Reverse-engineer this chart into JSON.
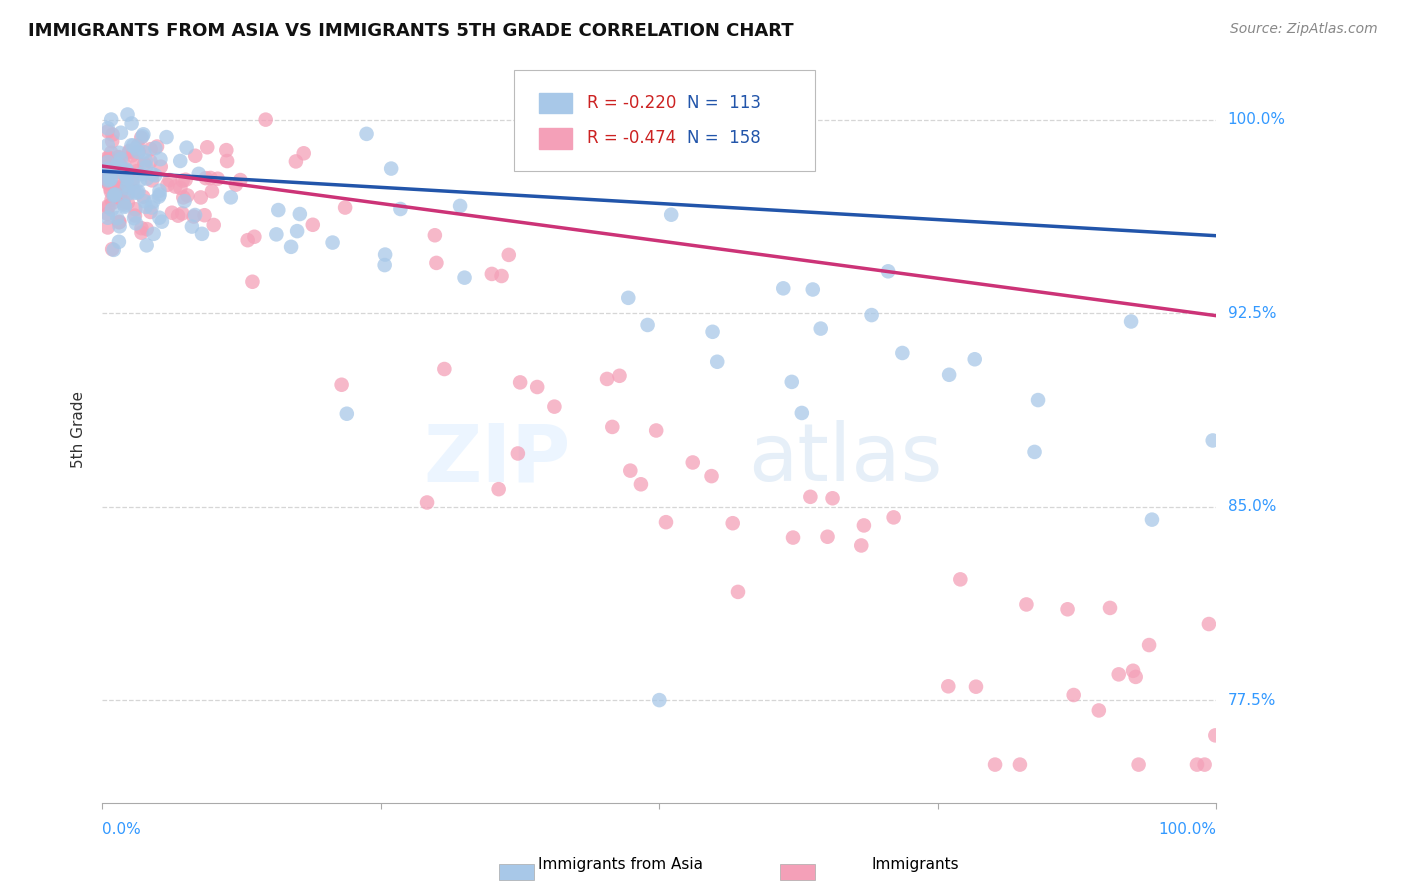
{
  "title": "IMMIGRANTS FROM ASIA VS IMMIGRANTS 5TH GRADE CORRELATION CHART",
  "source": "Source: ZipAtlas.com",
  "ylabel": "5th Grade",
  "ytick_labels": [
    "100.0%",
    "92.5%",
    "85.0%",
    "77.5%"
  ],
  "ytick_values": [
    1.0,
    0.925,
    0.85,
    0.775
  ],
  "xlim": [
    0.0,
    1.0
  ],
  "ylim": [
    0.735,
    1.025
  ],
  "blue_R": "-0.220",
  "blue_N": "113",
  "pink_R": "-0.474",
  "pink_N": "158",
  "blue_color": "#A8C8E8",
  "pink_color": "#F4A0B8",
  "blue_line_color": "#2255AA",
  "pink_line_color": "#CC3377",
  "legend_R_color": "#CC2222",
  "legend_N_color": "#2255AA",
  "watermark_zip": "ZIP",
  "watermark_atlas": "atlas",
  "grid_color": "#CCCCCC",
  "background_color": "#FFFFFF",
  "title_color": "#111111",
  "source_color": "#888888",
  "axis_label_color": "#3399FF",
  "ylabel_color": "#333333"
}
